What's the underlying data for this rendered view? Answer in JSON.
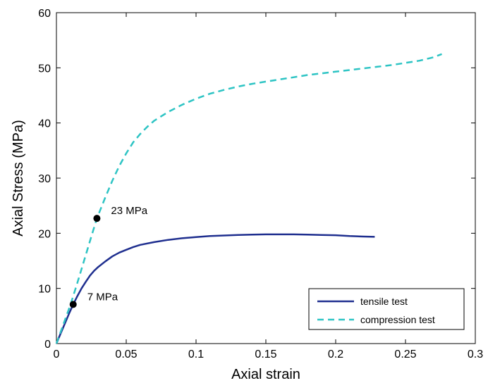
{
  "chart_data": {
    "type": "line",
    "xlabel": "Axial strain",
    "ylabel": "Axial Stress (MPa)",
    "xlim": [
      0,
      0.3
    ],
    "ylim": [
      0,
      60
    ],
    "xticks": [
      0,
      0.05,
      0.1,
      0.15,
      0.2,
      0.25,
      0.3
    ],
    "xtick_labels": [
      "0",
      "0.05",
      "0.1",
      "0.15",
      "0.2",
      "0.25",
      "0.3"
    ],
    "yticks": [
      0,
      10,
      20,
      30,
      40,
      50,
      60
    ],
    "ytick_labels": [
      "0",
      "10",
      "20",
      "30",
      "40",
      "50",
      "60"
    ],
    "grid": false,
    "legend_position": "bottom-right",
    "series": [
      {
        "name": "tensile test",
        "color": "#1f2f8f",
        "style": "solid",
        "x": [
          0,
          0.003,
          0.006,
          0.009,
          0.012,
          0.015,
          0.018,
          0.021,
          0.024,
          0.027,
          0.03,
          0.035,
          0.04,
          0.045,
          0.05,
          0.055,
          0.06,
          0.07,
          0.08,
          0.09,
          0.1,
          0.11,
          0.12,
          0.13,
          0.14,
          0.15,
          0.16,
          0.17,
          0.18,
          0.19,
          0.2,
          0.21,
          0.22,
          0.228
        ],
        "y": [
          0,
          1.8,
          3.6,
          5.4,
          7.1,
          8.6,
          10.0,
          11.2,
          12.3,
          13.2,
          13.9,
          14.9,
          15.8,
          16.5,
          17.0,
          17.5,
          17.9,
          18.4,
          18.8,
          19.1,
          19.3,
          19.5,
          19.6,
          19.7,
          19.75,
          19.8,
          19.8,
          19.8,
          19.75,
          19.7,
          19.65,
          19.5,
          19.4,
          19.35
        ]
      },
      {
        "name": "compression test",
        "color": "#2ec4c4",
        "style": "dashed",
        "x": [
          0,
          0.005,
          0.01,
          0.015,
          0.02,
          0.025,
          0.029,
          0.035,
          0.04,
          0.045,
          0.05,
          0.055,
          0.06,
          0.065,
          0.07,
          0.08,
          0.09,
          0.1,
          0.11,
          0.12,
          0.13,
          0.14,
          0.15,
          0.16,
          0.17,
          0.18,
          0.19,
          0.2,
          0.21,
          0.22,
          0.23,
          0.24,
          0.25,
          0.26,
          0.27,
          0.276
        ],
        "y": [
          0,
          3.5,
          7.0,
          11.0,
          15.2,
          19.4,
          22.7,
          26.5,
          29.5,
          32.2,
          34.5,
          36.5,
          38.0,
          39.3,
          40.4,
          42.0,
          43.3,
          44.4,
          45.3,
          46.0,
          46.6,
          47.1,
          47.5,
          47.9,
          48.3,
          48.7,
          49.0,
          49.3,
          49.6,
          49.9,
          50.2,
          50.5,
          50.9,
          51.3,
          51.9,
          52.5
        ]
      }
    ],
    "annotations": [
      {
        "x": 0.012,
        "y": 7.1,
        "text": "7 MPa"
      },
      {
        "x": 0.029,
        "y": 22.7,
        "text": "23 MPa"
      }
    ]
  }
}
